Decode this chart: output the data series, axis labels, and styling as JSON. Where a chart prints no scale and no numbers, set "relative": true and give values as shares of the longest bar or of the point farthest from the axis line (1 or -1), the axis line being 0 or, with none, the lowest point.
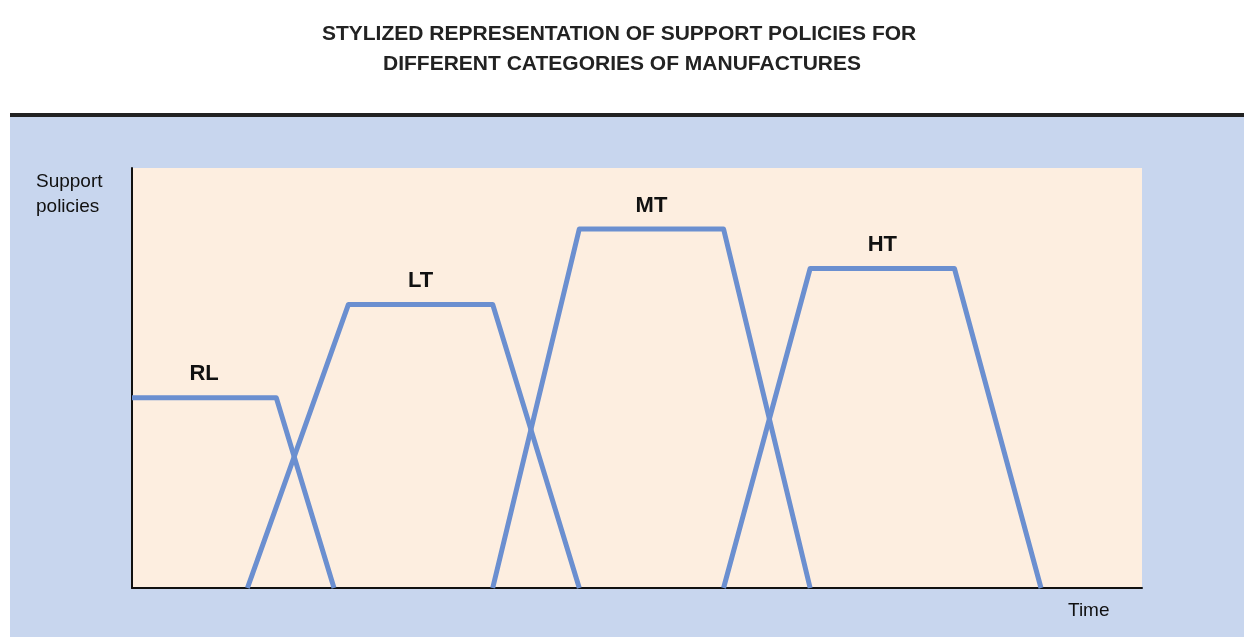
{
  "chart_data": {
    "type": "line",
    "title": "STYLIZED REPRESENTATION OF SUPPORT POLICIES FOR DIFFERENT CATEGORIES OF MANUFACTURES",
    "xlabel": "Time",
    "ylabel": "Support policies",
    "relative": true,
    "marker": "none",
    "line_style": "solid",
    "legend": false,
    "grid": false,
    "categories": [
      null,
      null,
      null,
      null,
      null,
      null,
      null,
      null,
      null,
      null,
      null,
      null,
      null,
      null,
      null,
      null,
      null,
      null,
      null,
      null,
      null,
      null,
      null,
      null,
      null,
      null,
      null,
      null,
      null,
      null,
      null,
      null,
      null,
      null,
      null,
      null,
      null,
      null,
      null,
      null,
      null,
      null,
      null,
      null,
      null,
      null,
      null,
      null,
      null,
      null,
      null,
      null,
      null,
      null,
      null,
      null,
      null,
      null,
      null,
      null,
      null,
      null,
      null,
      null,
      null,
      null,
      null,
      null,
      null,
      null,
      null
    ],
    "series": [
      {
        "name": "RL",
        "color": "#6b8fd0",
        "values": [
          0.53,
          null,
          null,
          null,
          null,
          null,
          null,
          null,
          null,
          null,
          0.53,
          null,
          null,
          null,
          0,
          null,
          null,
          null,
          null,
          null,
          null,
          null,
          null,
          null,
          null,
          null,
          null,
          null,
          null,
          null,
          null,
          null,
          null,
          null,
          null,
          null,
          null,
          null,
          null,
          null,
          null,
          null,
          null,
          null,
          null,
          null,
          null,
          null,
          null,
          null,
          null,
          null,
          null,
          null,
          null,
          null,
          null,
          null,
          null,
          null,
          null,
          null,
          null,
          null,
          null,
          null,
          null,
          null,
          null,
          null,
          null
        ]
      },
      {
        "name": "LT",
        "color": "#6b8fd0",
        "values": [
          null,
          null,
          null,
          null,
          null,
          null,
          null,
          null,
          0,
          null,
          null,
          null,
          null,
          null,
          null,
          0.79,
          null,
          null,
          null,
          null,
          null,
          null,
          null,
          null,
          null,
          0.79,
          null,
          null,
          null,
          null,
          null,
          0,
          null,
          null,
          null,
          null,
          null,
          null,
          null,
          null,
          null,
          null,
          null,
          null,
          null,
          null,
          null,
          null,
          null,
          null,
          null,
          null,
          null,
          null,
          null,
          null,
          null,
          null,
          null,
          null,
          null,
          null,
          null,
          null,
          null,
          null,
          null,
          null,
          null,
          null,
          null
        ]
      },
      {
        "name": "MT",
        "color": "#6b8fd0",
        "values": [
          null,
          null,
          null,
          null,
          null,
          null,
          null,
          null,
          null,
          null,
          null,
          null,
          null,
          null,
          null,
          null,
          null,
          null,
          null,
          null,
          null,
          null,
          null,
          null,
          null,
          0,
          null,
          null,
          null,
          null,
          null,
          1,
          null,
          null,
          null,
          null,
          null,
          null,
          null,
          null,
          null,
          1,
          null,
          null,
          null,
          null,
          null,
          0,
          null,
          null,
          null,
          null,
          null,
          null,
          null,
          null,
          null,
          null,
          null,
          null,
          null,
          null,
          null,
          null,
          null,
          null,
          null,
          null,
          null,
          null,
          null
        ]
      },
      {
        "name": "HT",
        "color": "#6b8fd0",
        "values": [
          null,
          null,
          null,
          null,
          null,
          null,
          null,
          null,
          null,
          null,
          null,
          null,
          null,
          null,
          null,
          null,
          null,
          null,
          null,
          null,
          null,
          null,
          null,
          null,
          null,
          null,
          null,
          null,
          null,
          null,
          null,
          null,
          null,
          null,
          null,
          null,
          null,
          null,
          null,
          null,
          null,
          0,
          null,
          null,
          null,
          null,
          null,
          0.89,
          null,
          null,
          null,
          null,
          null,
          null,
          null,
          null,
          null,
          0.89,
          null,
          null,
          null,
          null,
          null,
          0,
          null,
          null,
          null,
          null,
          null,
          null,
          null
        ]
      }
    ]
  }
}
